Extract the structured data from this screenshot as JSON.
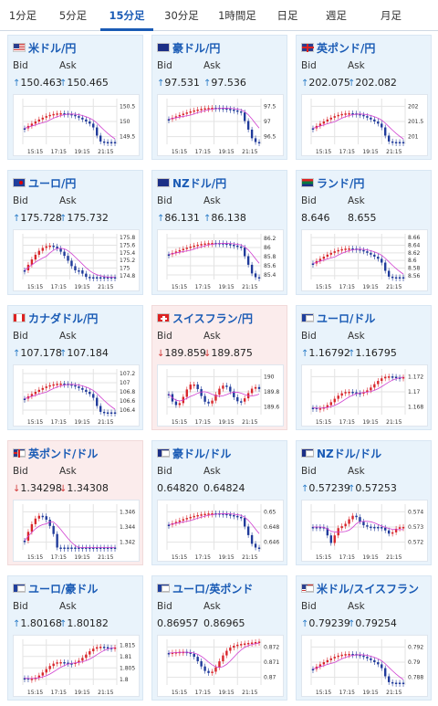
{
  "tabs": [
    {
      "label": "1分足",
      "active": false
    },
    {
      "label": "5分足",
      "active": false
    },
    {
      "label": "15分足",
      "active": true
    },
    {
      "label": "30分足",
      "active": false
    },
    {
      "label": "1時間足",
      "active": false
    },
    {
      "label": "日足",
      "active": false
    },
    {
      "label": "週足",
      "active": false
    },
    {
      "label": "月足",
      "active": false
    }
  ],
  "labels": {
    "bid": "Bid",
    "ask": "Ask"
  },
  "colors": {
    "up_candle": "#d8262b",
    "down_candle": "#1f3a9a",
    "ma_line": "#d040d0",
    "up_arrow": "#2a7cc7",
    "down_arrow": "#d23a3a"
  },
  "x_ticks": [
    "15:15",
    "17:15",
    "19:15",
    "21:15"
  ],
  "cards": [
    {
      "pair": "米ドル/円",
      "flag": "us",
      "dir": "up",
      "bid": "150.463",
      "ask": "150.465",
      "y_ticks": [
        "150.5",
        "150",
        "149.5"
      ],
      "shape": "u-rise"
    },
    {
      "pair": "豪ドル/円",
      "flag": "au",
      "dir": "up",
      "bid": "97.531",
      "ask": "97.536",
      "y_ticks": [
        "97.5",
        "97",
        "96.5"
      ],
      "shape": "late-rise"
    },
    {
      "pair": "英ポンド/円",
      "flag": "uk",
      "dir": "up",
      "bid": "202.075",
      "ask": "202.082",
      "y_ticks": [
        "202",
        "201.5",
        "201"
      ],
      "shape": "u-rise"
    },
    {
      "pair": "ユーロ/円",
      "flag": "eu",
      "dir": "up",
      "bid": "175.728",
      "ask": "175.732",
      "y_ticks": [
        "175.8",
        "175.6",
        "175.4",
        "175.2",
        "175",
        "174.8"
      ],
      "shape": "drop-rise"
    },
    {
      "pair": "NZドル/円",
      "flag": "nz",
      "dir": "up",
      "bid": "86.131",
      "ask": "86.138",
      "y_ticks": [
        "86.2",
        "86",
        "85.8",
        "85.6",
        "85.4"
      ],
      "shape": "late-rise"
    },
    {
      "pair": "ランド/円",
      "flag": "za",
      "dir": "none",
      "bid": "8.646",
      "ask": "8.655",
      "y_ticks": [
        "8.66",
        "8.64",
        "8.62",
        "8.6",
        "8.58",
        "8.56"
      ],
      "shape": "u-rise"
    },
    {
      "pair": "カナダドル/円",
      "flag": "ca",
      "dir": "up",
      "bid": "107.178",
      "ask": "107.184",
      "y_ticks": [
        "107.2",
        "107",
        "106.8",
        "106.6",
        "106.4"
      ],
      "shape": "u-rise"
    },
    {
      "pair": "スイスフラン/円",
      "flag": "ch",
      "dir": "down",
      "bid": "189.859",
      "ask": "189.875",
      "y_ticks": [
        "190",
        "189.8",
        "189.6"
      ],
      "shape": "choppy"
    },
    {
      "pair": "ユーロ/ドル",
      "flag": "eu-us",
      "dir": "up",
      "bid": "1.16792",
      "ask": "1.16795",
      "y_ticks": [
        "1.172",
        "1.17",
        "1.168"
      ],
      "shape": "decline"
    },
    {
      "pair": "英ポンド/ドル",
      "flag": "uk-us",
      "dir": "down",
      "bid": "1.34298",
      "ask": "1.34308",
      "y_ticks": [
        "1.346",
        "1.344",
        "1.342"
      ],
      "shape": "down-flat"
    },
    {
      "pair": "豪ドル/ドル",
      "flag": "au-us",
      "dir": "none",
      "bid": "0.64820",
      "ask": "0.64824",
      "y_ticks": [
        "0.65",
        "0.648",
        "0.646"
      ],
      "shape": "late-rise"
    },
    {
      "pair": "NZドル/ドル",
      "flag": "nz-us",
      "dir": "up",
      "bid": "0.57239",
      "ask": "0.57253",
      "y_ticks": [
        "0.574",
        "0.573",
        "0.572"
      ],
      "shape": "spike-dip"
    },
    {
      "pair": "ユーロ/豪ドル",
      "flag": "eu-au",
      "dir": "up",
      "bid": "1.80168",
      "ask": "1.80182",
      "y_ticks": [
        "1.815",
        "1.81",
        "1.805",
        "1.8"
      ],
      "shape": "decline"
    },
    {
      "pair": "ユーロ/英ポンド",
      "flag": "eu-uk",
      "dir": "none",
      "bid": "0.86957",
      "ask": "0.86965",
      "y_ticks": [
        "0.872",
        "0.871",
        "0.87"
      ],
      "shape": "peak-decline"
    },
    {
      "pair": "米ドル/スイスフラン",
      "flag": "us-ch",
      "dir": "up",
      "bid": "0.79239",
      "ask": "0.79254",
      "y_ticks": [
        "0.792",
        "0.79",
        "0.788"
      ],
      "shape": "u-rise"
    }
  ]
}
